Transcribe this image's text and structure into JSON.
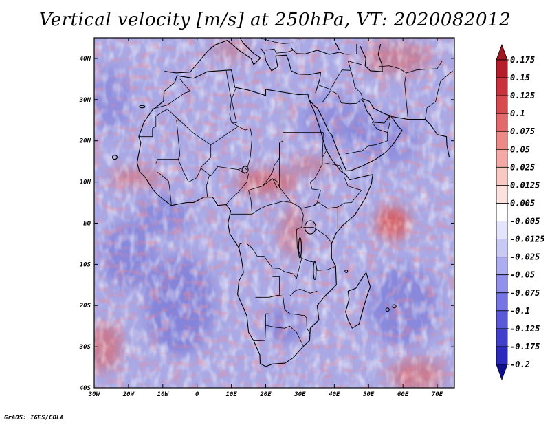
{
  "title": "Vertical velocity [m/s] at 250hPa, VT: 2020082012",
  "credit": "GrADS: IGES/COLA",
  "map": {
    "lon_range": [
      -30,
      75
    ],
    "lat_range": [
      -40,
      45
    ],
    "lon_ticks": [
      {
        "lon": -30,
        "label": "30W"
      },
      {
        "lon": -20,
        "label": "20W"
      },
      {
        "lon": -10,
        "label": "10W"
      },
      {
        "lon": 0,
        "label": "0"
      },
      {
        "lon": 10,
        "label": "10E"
      },
      {
        "lon": 20,
        "label": "20E"
      },
      {
        "lon": 30,
        "label": "30E"
      },
      {
        "lon": 40,
        "label": "40E"
      },
      {
        "lon": 50,
        "label": "50E"
      },
      {
        "lon": 60,
        "label": "60E"
      },
      {
        "lon": 70,
        "label": "70E"
      }
    ],
    "lat_ticks": [
      {
        "lat": 40,
        "label": "40N"
      },
      {
        "lat": 30,
        "label": "30N"
      },
      {
        "lat": 20,
        "label": "20N"
      },
      {
        "lat": 10,
        "label": "10N"
      },
      {
        "lat": 0,
        "label": "EQ"
      },
      {
        "lat": -10,
        "label": "10S"
      },
      {
        "lat": -20,
        "label": "20S"
      },
      {
        "lat": -30,
        "label": "30S"
      },
      {
        "lat": -40,
        "label": "40S"
      }
    ]
  },
  "colorbar": {
    "levels": [
      {
        "label": "0.175",
        "color": "#b41e28"
      },
      {
        "label": "0.15",
        "color": "#c8323a"
      },
      {
        "label": "0.125",
        "color": "#d74b4f"
      },
      {
        "label": "0.1",
        "color": "#e36a6a"
      },
      {
        "label": "0.075",
        "color": "#ec8a86"
      },
      {
        "label": "0.05",
        "color": "#f3aaa4"
      },
      {
        "label": "0.025",
        "color": "#f8c8c2"
      },
      {
        "label": "0.0125",
        "color": "#fce2de"
      },
      {
        "label": "0.005",
        "color": "#ffffff"
      },
      {
        "label": "-0.005",
        "color": "#e4e4fb"
      },
      {
        "label": "-0.0125",
        "color": "#c9c9f6"
      },
      {
        "label": "-0.025",
        "color": "#adadf0"
      },
      {
        "label": "-0.05",
        "color": "#9191ea"
      },
      {
        "label": "-0.075",
        "color": "#7575e3"
      },
      {
        "label": "-0.1",
        "color": "#5a5ad8"
      },
      {
        "label": "-0.125",
        "color": "#4040cc"
      },
      {
        "label": "-0.175",
        "color": "#2a2abc"
      },
      {
        "label": "-0.2",
        "color": "#1c1ca8"
      }
    ],
    "top_color": "#a01820",
    "bottom_color": "#10108c"
  },
  "colors": {
    "field_base": "#a9a9e6",
    "upward": "#d85a5a",
    "downward": "#6060d0",
    "coast": "#000000"
  }
}
